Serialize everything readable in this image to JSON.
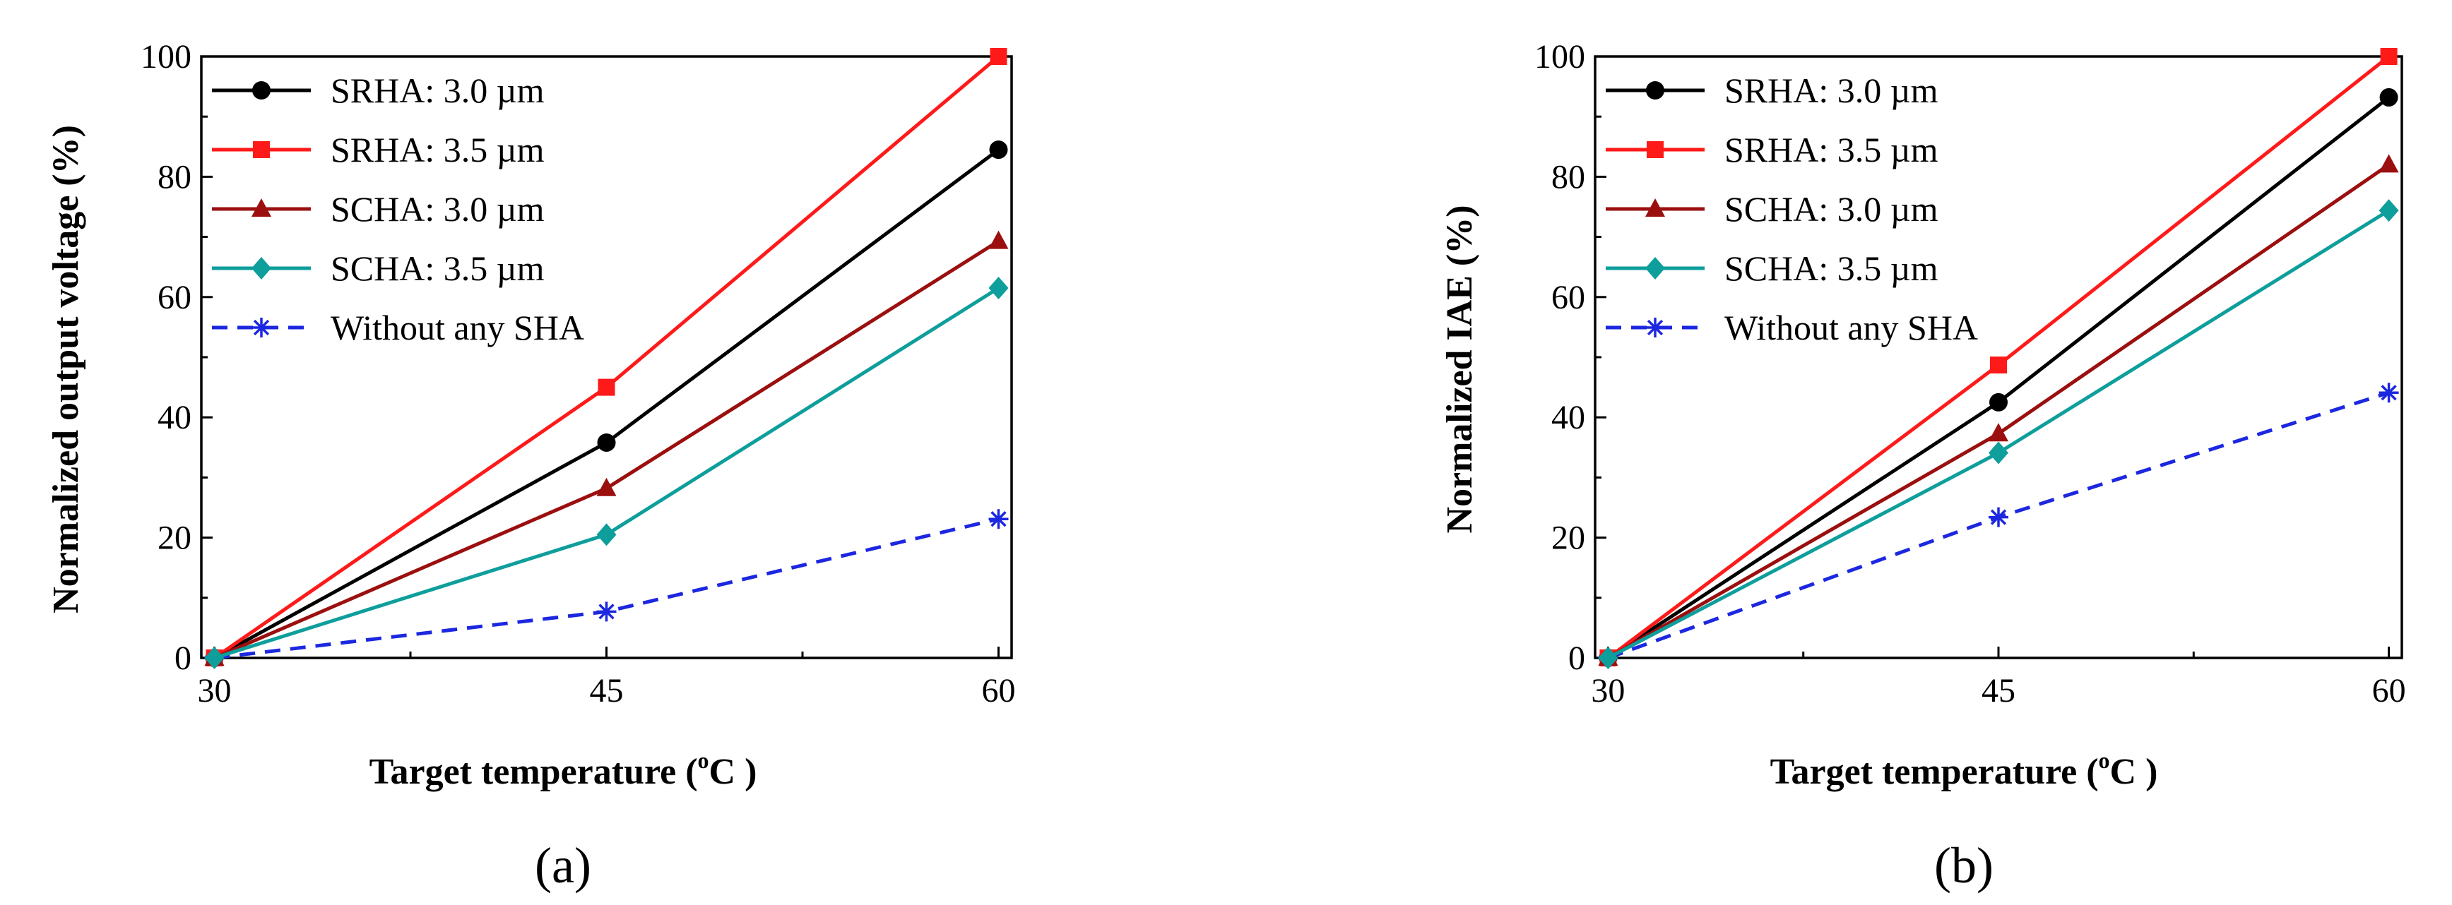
{
  "figure": {
    "panels": [
      {
        "label": "(a)"
      },
      {
        "label": "(b)"
      }
    ]
  },
  "legend": {
    "entries": [
      {
        "name": "SRHA: 3.0 µm",
        "color": "#000000",
        "marker": "circle",
        "dash": false
      },
      {
        "name": "SRHA: 3.5 µm",
        "color": "#ff1a1a",
        "marker": "square",
        "dash": false
      },
      {
        "name": "SCHA: 3.0 µm",
        "color": "#9b0f0f",
        "marker": "triangle",
        "dash": false
      },
      {
        "name": "SCHA: 3.5 µm",
        "color": "#0e9e9b",
        "marker": "diamond",
        "dash": false
      },
      {
        "name": "Without any SHA",
        "color": "#1c27e0",
        "marker": "asterisk",
        "dash": true
      }
    ]
  },
  "chart_data": [
    {
      "type": "line",
      "panel": "(a)",
      "title": "",
      "xlabel": "Target temperature (ᵒC )",
      "xlabel_main": "Target temperature (",
      "xlabel_sup": "o",
      "xlabel_tail": "C )",
      "ylabel": "Normalized output voltage (%)",
      "x": [
        30,
        45,
        60
      ],
      "xlim": [
        29.5,
        60.5
      ],
      "ylim": [
        0,
        100
      ],
      "xticks": [
        30,
        45,
        60
      ],
      "xticks_minor": [
        37.5,
        52.5
      ],
      "yticks": [
        0,
        20,
        40,
        60,
        80,
        100
      ],
      "yticks_minor": [
        10,
        30,
        50,
        70,
        90
      ],
      "legend_position": "top-left",
      "series": [
        {
          "name": "SRHA: 3.0 µm",
          "values": [
            0,
            35.8,
            84.5
          ]
        },
        {
          "name": "SRHA: 3.5 µm",
          "values": [
            0,
            45,
            100
          ]
        },
        {
          "name": "SCHA: 3.0 µm",
          "values": [
            0,
            28.2,
            69.3
          ]
        },
        {
          "name": "SCHA: 3.5 µm",
          "values": [
            0,
            20.5,
            61.5
          ]
        },
        {
          "name": "Without any SHA",
          "values": [
            0,
            7.7,
            23.1
          ]
        }
      ]
    },
    {
      "type": "line",
      "panel": "(b)",
      "title": "",
      "xlabel": "Target temperature (ᵒC )",
      "xlabel_main": "Target temperature (",
      "xlabel_sup": "o",
      "xlabel_tail": "C )",
      "ylabel": "Normalized IAE (%)",
      "x": [
        30,
        45,
        60
      ],
      "xlim": [
        29.5,
        60.5
      ],
      "ylim": [
        0,
        100
      ],
      "xticks": [
        30,
        45,
        60
      ],
      "xticks_minor": [
        37.5,
        52.5
      ],
      "yticks": [
        0,
        20,
        40,
        60,
        80,
        100
      ],
      "yticks_minor": [
        10,
        30,
        50,
        70,
        90
      ],
      "legend_position": "top-left",
      "series": [
        {
          "name": "SRHA: 3.0 µm",
          "values": [
            0,
            42.5,
            93.2
          ]
        },
        {
          "name": "SRHA: 3.5 µm",
          "values": [
            0,
            48.7,
            100
          ]
        },
        {
          "name": "SCHA: 3.0 µm",
          "values": [
            0,
            37.3,
            82
          ]
        },
        {
          "name": "SCHA: 3.5 µm",
          "values": [
            0,
            34.1,
            74.4
          ]
        },
        {
          "name": "Without any SHA",
          "values": [
            0,
            23.4,
            44.1
          ]
        }
      ]
    }
  ]
}
